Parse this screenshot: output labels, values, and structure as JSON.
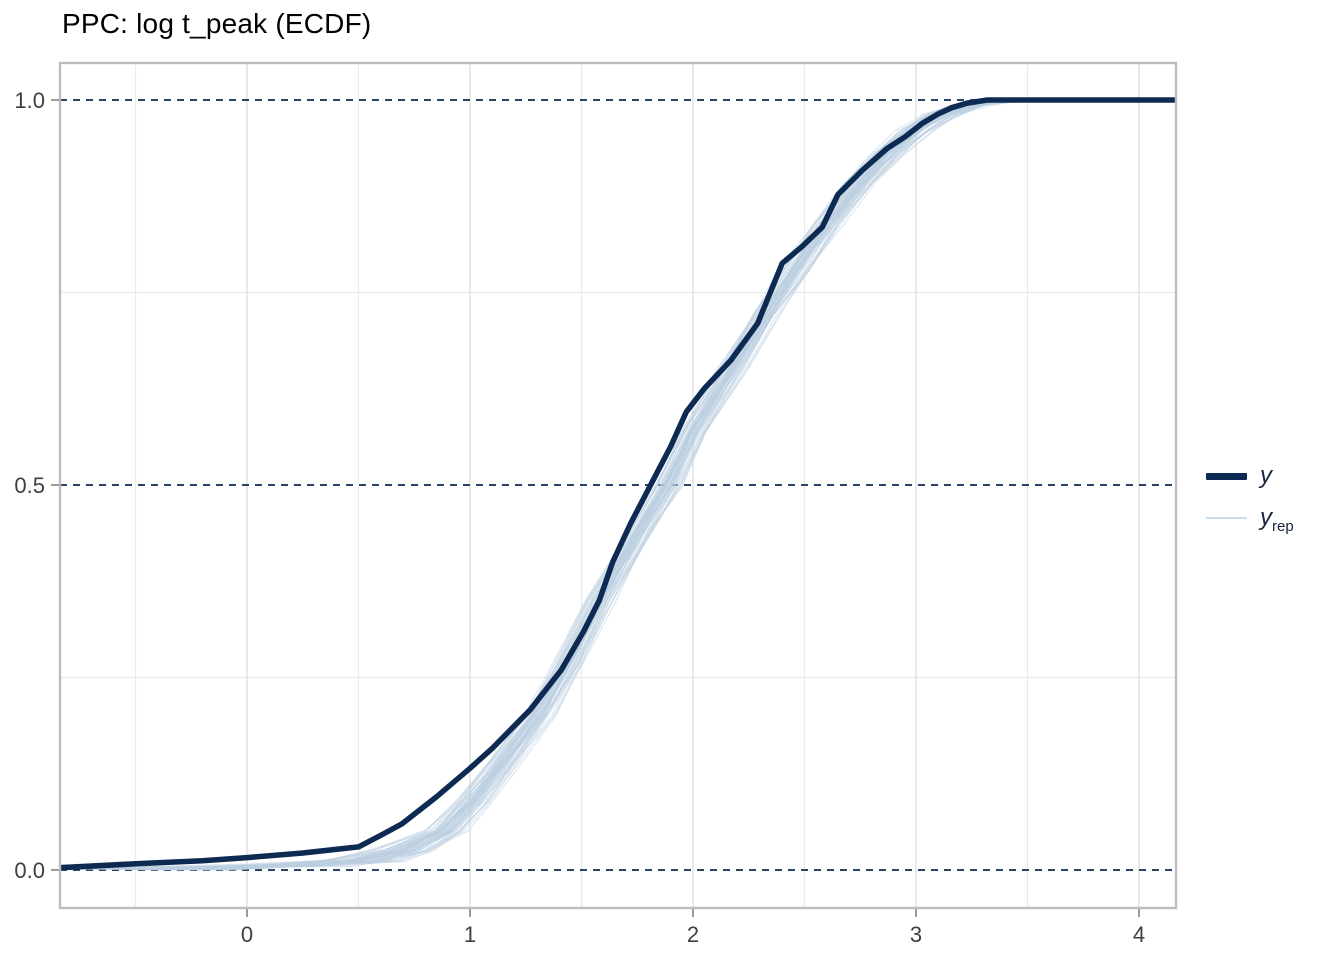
{
  "title": "PPC: log t_peak (ECDF)",
  "legend": {
    "items": [
      {
        "label": "y",
        "subscript": ""
      },
      {
        "label": "y",
        "subscript": "rep"
      }
    ]
  },
  "colors": {
    "dark_line": "#0d2a52",
    "rep_line": "#bccfe1",
    "dashed_line": "#0d2a52",
    "grid_major": "#e0e0e0",
    "grid_minor": "#ebebeb",
    "panel_border": "#bdbdbd",
    "tick_mark": "#9a9a9a",
    "tick_text": "#3f3f3f",
    "background": "#ffffff"
  },
  "chart_data": {
    "type": "line",
    "title": "PPC: log t_peak (ECDF)",
    "xlabel": "",
    "ylabel": "",
    "xlim": [
      -0.8386,
      4.166
    ],
    "ylim": [
      -0.0494,
      1.0481
    ],
    "x_ticks": [
      0,
      1,
      2,
      3,
      4
    ],
    "x_tick_labels": [
      "0",
      "1",
      "2",
      "3",
      "4"
    ],
    "y_ticks": [
      0.0,
      0.5,
      1.0
    ],
    "y_tick_labels": [
      "0.0",
      "0.5",
      "1.0"
    ],
    "grid_minor_x": [
      -0.5,
      0.5,
      1.5,
      2.5,
      3.5
    ],
    "grid_minor_y": [
      0.25,
      0.75
    ],
    "dashed_hlines": [
      0.0,
      0.5,
      1.0
    ],
    "grid": "on",
    "legend_position": "right",
    "series": [
      {
        "name": "y",
        "kind": "ecdf",
        "points": [
          [
            -0.84,
            0.003
          ],
          [
            -0.5,
            0.008
          ],
          [
            -0.2,
            0.012
          ],
          [
            0.0,
            0.016
          ],
          [
            0.25,
            0.022
          ],
          [
            0.5,
            0.03
          ],
          [
            0.6,
            0.045
          ],
          [
            0.695,
            0.06
          ],
          [
            0.85,
            0.095
          ],
          [
            1.0,
            0.132
          ],
          [
            1.1,
            0.158
          ],
          [
            1.27,
            0.208
          ],
          [
            1.41,
            0.26
          ],
          [
            1.51,
            0.31
          ],
          [
            1.58,
            0.35
          ],
          [
            1.64,
            0.4
          ],
          [
            1.72,
            0.45
          ],
          [
            1.81,
            0.5
          ],
          [
            1.9,
            0.55
          ],
          [
            1.97,
            0.595
          ],
          [
            2.05,
            0.625
          ],
          [
            2.17,
            0.662
          ],
          [
            2.29,
            0.71
          ],
          [
            2.4,
            0.788
          ],
          [
            2.49,
            0.81
          ],
          [
            2.58,
            0.835
          ],
          [
            2.65,
            0.877
          ],
          [
            2.76,
            0.909
          ],
          [
            2.87,
            0.937
          ],
          [
            2.95,
            0.952
          ],
          [
            3.03,
            0.97
          ],
          [
            3.1,
            0.982
          ],
          [
            3.16,
            0.99
          ],
          [
            3.23,
            0.996
          ],
          [
            3.32,
            1.0
          ],
          [
            4.17,
            1.0
          ]
        ]
      },
      {
        "name": "y_rep",
        "kind": "ecdf-band",
        "n_lines": 60,
        "levels_y": [
          0.002,
          0.006,
          0.012,
          0.025,
          0.05,
          0.09,
          0.13,
          0.2,
          0.27,
          0.35,
          0.44,
          0.5,
          0.57,
          0.65,
          0.72,
          0.78,
          0.84,
          0.89,
          0.93,
          0.96,
          0.98,
          0.993,
          0.999,
          1.0
        ],
        "center_x": [
          -0.25,
          0.2,
          0.5,
          0.7,
          0.88,
          1.01,
          1.12,
          1.3,
          1.44,
          1.58,
          1.76,
          1.885,
          2.0,
          2.17,
          2.32,
          2.46,
          2.6,
          2.74,
          2.87,
          2.99,
          3.1,
          3.22,
          3.35,
          3.42
        ],
        "halfwidth_x": [
          0.3,
          0.25,
          0.2,
          0.15,
          0.1,
          0.085,
          0.08,
          0.075,
          0.07,
          0.07,
          0.065,
          0.065,
          0.065,
          0.065,
          0.065,
          0.07,
          0.07,
          0.075,
          0.08,
          0.085,
          0.09,
          0.1,
          0.12,
          0.14
        ]
      }
    ]
  }
}
